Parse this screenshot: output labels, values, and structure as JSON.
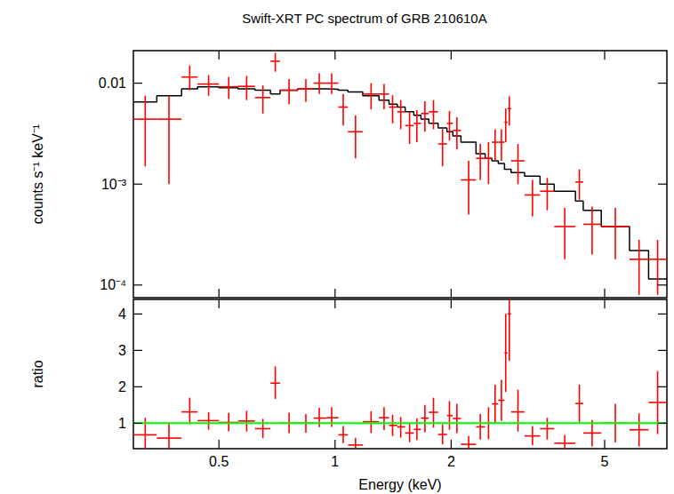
{
  "chart_data": [
    {
      "type": "errorbar",
      "title": "Swift-XRT PC spectrum of GRB 210610A",
      "y_label": "counts s⁻¹ keV⁻¹",
      "log": true,
      "tick_labels": "y",
      "xlim": [
        0.3,
        7.25
      ],
      "xticks": [
        0.5,
        1,
        2,
        5
      ],
      "ylim": [
        7.5e-05,
        0.021
      ],
      "yticks": [
        0.01,
        {
          "value": 0.001,
          "label": "10⁻³"
        },
        {
          "value": 0.0001,
          "label": "10⁻⁴"
        }
      ],
      "x": [
        0.322,
        0.371,
        0.42,
        0.47,
        0.53,
        0.59,
        0.65,
        0.7,
        0.76,
        0.84,
        0.91,
        0.98,
        1.05,
        1.13,
        1.24,
        1.34,
        1.41,
        1.48,
        1.56,
        1.63,
        1.71,
        1.8,
        1.9,
        1.98,
        2.07,
        2.22,
        2.38,
        2.5,
        2.6,
        2.7,
        2.77,
        2.83,
        2.98,
        3.25,
        3.55,
        3.94,
        4.3,
        4.64,
        5.33,
        6.14,
        6.86
      ],
      "bins": [
        0.3,
        0.345,
        0.4,
        0.44,
        0.5,
        0.56,
        0.62,
        0.68,
        0.72,
        0.8,
        0.88,
        0.95,
        1.02,
        1.08,
        1.18,
        1.3,
        1.38,
        1.45,
        1.52,
        1.6,
        1.67,
        1.75,
        1.85,
        1.95,
        2.02,
        2.12,
        2.32,
        2.45,
        2.55,
        2.65,
        2.75,
        2.8,
        2.86,
        3.1,
        3.4,
        3.7,
        4.2,
        4.4,
        4.9,
        5.8,
        6.5,
        7.25
      ],
      "series": [
        {
          "type": "errorbar",
          "color": "#ff0000",
          "values": [
            0.0044,
            0.0044,
            0.0115,
            0.0098,
            0.0092,
            0.0093,
            0.0072,
            0.0165,
            0.0085,
            0.0088,
            0.01,
            0.01,
            0.0058,
            0.0033,
            0.0078,
            0.0078,
            0.0058,
            0.0052,
            0.0038,
            0.004,
            0.005,
            0.0052,
            0.0025,
            0.004,
            0.0034,
            0.0011,
            0.0018,
            0.0018,
            0.0026,
            0.0026,
            0.0041,
            0.0056,
            0.0017,
            0.00078,
            0.00085,
            0.00038,
            0.00105,
            0.0004,
            0.00038,
            0.00018,
            0.00018
          ],
          "y_low": [
            0.0015,
            0.001,
            0.0085,
            0.0075,
            0.007,
            0.0068,
            0.005,
            0.013,
            0.0062,
            0.0065,
            0.0078,
            0.0078,
            0.0038,
            0.0018,
            0.0055,
            0.0055,
            0.004,
            0.0035,
            0.0025,
            0.0026,
            0.0033,
            0.0035,
            0.0015,
            0.0027,
            0.0022,
            0.0005,
            0.0011,
            0.001,
            0.0017,
            0.0017,
            0.0026,
            0.0038,
            0.001,
            0.00048,
            0.00055,
            0.00018,
            0.0007,
            0.0002,
            0.00018,
            8e-05,
            8e-05
          ],
          "y_high": [
            0.0075,
            0.0075,
            0.015,
            0.012,
            0.0115,
            0.0118,
            0.0095,
            0.02,
            0.011,
            0.011,
            0.0125,
            0.0125,
            0.0078,
            0.0048,
            0.01,
            0.0098,
            0.0076,
            0.0068,
            0.0052,
            0.0054,
            0.0066,
            0.0068,
            0.0035,
            0.0053,
            0.0046,
            0.0017,
            0.0025,
            0.0026,
            0.0035,
            0.0035,
            0.0056,
            0.0074,
            0.0025,
            0.0011,
            0.00115,
            0.00058,
            0.0014,
            0.0006,
            0.00058,
            0.00028,
            0.00028
          ]
        },
        {
          "type": "step",
          "color": "#000000",
          "values": [
            0.0065,
            0.0075,
            0.0088,
            0.0092,
            0.009,
            0.0088,
            0.0085,
            0.0078,
            0.0085,
            0.0088,
            0.0088,
            0.0087,
            0.0085,
            0.0082,
            0.0075,
            0.0068,
            0.0062,
            0.0058,
            0.0052,
            0.0048,
            0.0044,
            0.004,
            0.0036,
            0.0033,
            0.003,
            0.0026,
            0.002,
            0.0018,
            0.0017,
            0.0016,
            0.0014,
            0.0014,
            0.0013,
            0.0012,
            0.001,
            0.00085,
            0.00068,
            0.00055,
            0.00038,
            0.00022,
            0.000115
          ]
        }
      ]
    },
    {
      "type": "errorbar",
      "x_label": "Energy (keV)",
      "y_label": "ratio",
      "log": "x",
      "xlim": [
        0.3,
        7.25
      ],
      "xticks": [
        0.5,
        1,
        2,
        5
      ],
      "ylim": [
        0.3,
        4.4
      ],
      "yticks": [
        1,
        2,
        3,
        4
      ],
      "x": [
        0.322,
        0.371,
        0.42,
        0.47,
        0.53,
        0.59,
        0.65,
        0.7,
        0.76,
        0.84,
        0.91,
        0.98,
        1.05,
        1.13,
        1.24,
        1.34,
        1.41,
        1.48,
        1.56,
        1.63,
        1.71,
        1.8,
        1.9,
        1.98,
        2.07,
        2.22,
        2.38,
        2.5,
        2.6,
        2.7,
        2.77,
        2.83,
        2.98,
        3.25,
        3.55,
        3.94,
        4.3,
        4.64,
        5.33,
        6.14,
        6.86
      ],
      "bins": [
        0.3,
        0.345,
        0.4,
        0.44,
        0.5,
        0.56,
        0.62,
        0.68,
        0.72,
        0.8,
        0.88,
        0.95,
        1.02,
        1.08,
        1.18,
        1.3,
        1.38,
        1.45,
        1.52,
        1.6,
        1.67,
        1.75,
        1.85,
        1.95,
        2.02,
        2.12,
        2.32,
        2.45,
        2.55,
        2.65,
        2.75,
        2.8,
        2.86,
        3.1,
        3.4,
        3.7,
        4.2,
        4.4,
        4.9,
        5.8,
        6.5,
        7.25
      ],
      "series": [
        {
          "type": "errorbar",
          "color": "#ff0000",
          "values": [
            0.68,
            0.59,
            1.31,
            1.07,
            1.02,
            1.06,
            0.85,
            2.1,
            1.0,
            1.0,
            1.14,
            1.15,
            0.68,
            0.4,
            1.04,
            1.15,
            0.94,
            0.9,
            0.73,
            0.83,
            1.14,
            1.3,
            0.69,
            1.21,
            1.13,
            0.42,
            0.9,
            1.0,
            1.53,
            1.63,
            2.93,
            4.0,
            1.31,
            0.65,
            0.85,
            0.45,
            1.54,
            0.73,
            1.0,
            0.82,
            1.57
          ],
          "y_low": [
            0.23,
            0.13,
            0.97,
            0.82,
            0.78,
            0.77,
            0.59,
            1.67,
            0.73,
            0.74,
            0.89,
            0.9,
            0.45,
            0.22,
            0.73,
            0.81,
            0.65,
            0.6,
            0.48,
            0.54,
            0.75,
            0.88,
            0.42,
            0.82,
            0.73,
            0.19,
            0.55,
            0.56,
            1.0,
            1.06,
            1.86,
            2.71,
            0.77,
            0.4,
            0.55,
            0.21,
            1.03,
            0.36,
            0.47,
            0.36,
            0.7
          ],
          "y_high": [
            1.15,
            1.0,
            1.7,
            1.3,
            1.28,
            1.34,
            1.12,
            2.56,
            1.29,
            1.25,
            1.42,
            1.44,
            0.92,
            0.59,
            1.33,
            1.44,
            1.23,
            1.17,
            1.0,
            1.13,
            1.5,
            1.7,
            0.97,
            1.61,
            1.53,
            0.65,
            1.25,
            1.44,
            2.06,
            2.19,
            4.0,
            5.29,
            1.92,
            0.92,
            1.15,
            0.68,
            2.06,
            1.09,
            1.53,
            1.27,
            2.43
          ]
        },
        {
          "type": "hline",
          "color": "#00ff00",
          "values": [
            1
          ]
        }
      ]
    }
  ]
}
